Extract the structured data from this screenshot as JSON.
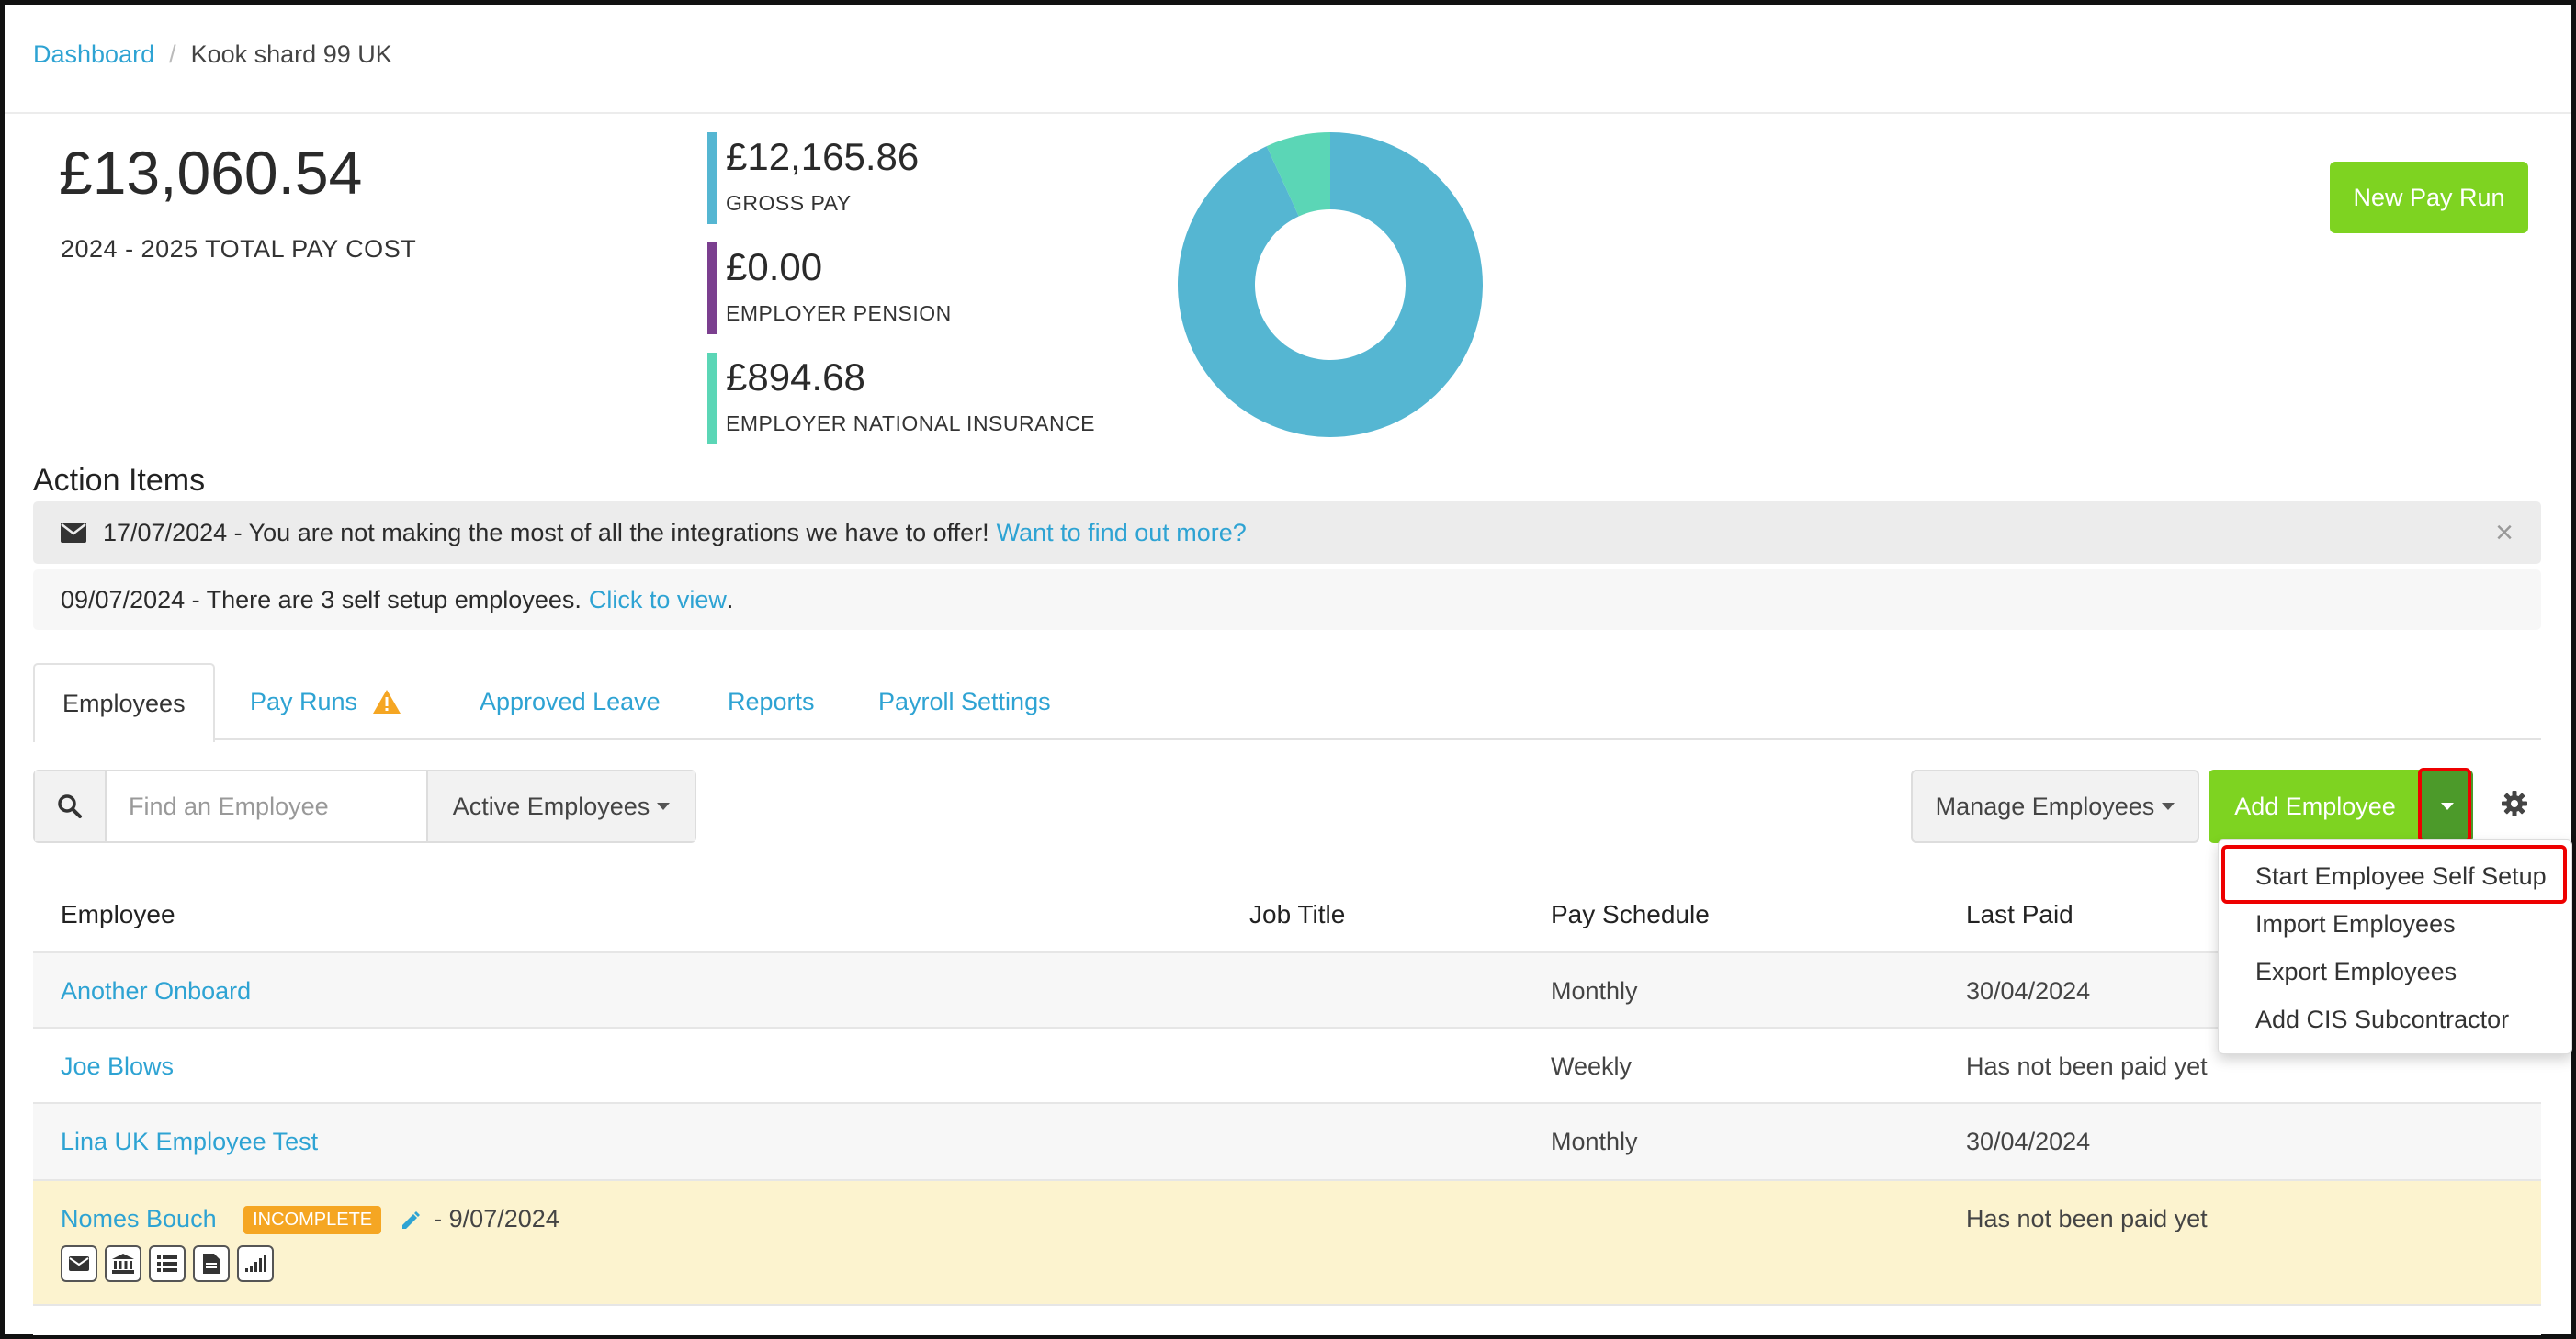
{
  "breadcrumb": {
    "home": "Dashboard",
    "separator": "/",
    "current": "Kook shard 99 UK"
  },
  "summary": {
    "total_amount": "£13,060.54",
    "total_label": "2024 - 2025 TOTAL PAY COST",
    "stats": [
      {
        "amount": "£12,165.86",
        "label": "GROSS PAY",
        "color": "#55b6d2"
      },
      {
        "amount": "£0.00",
        "label": "EMPLOYER PENSION",
        "color": "#7b3f8f"
      },
      {
        "amount": "£894.68",
        "label": "EMPLOYER NATIONAL INSURANCE",
        "color": "#5bd6b6"
      }
    ],
    "new_pay_run_label": "New Pay Run"
  },
  "chart_data": {
    "type": "pie",
    "variant": "donut",
    "series": [
      {
        "name": "GROSS PAY",
        "value": 12165.86,
        "color": "#55b6d2"
      },
      {
        "name": "EMPLOYER PENSION",
        "value": 0.0,
        "color": "#7b3f8f"
      },
      {
        "name": "EMPLOYER NATIONAL INSURANCE",
        "value": 894.68,
        "color": "#5bd6b6"
      }
    ]
  },
  "action_items": {
    "title": "Action Items",
    "alerts": [
      {
        "text": "17/07/2024 - You are not making the most of all the integrations we have to offer!",
        "link": "Want to find out more?",
        "icon": "envelope-icon",
        "close": "×"
      },
      {
        "text": "09/07/2024 - There are 3 self setup employees.",
        "link": "Click to view",
        "suffix": "."
      }
    ]
  },
  "tabs": [
    {
      "label": "Employees",
      "active": true
    },
    {
      "label": "Pay Runs",
      "warning_icon": "warning-icon"
    },
    {
      "label": "Approved Leave"
    },
    {
      "label": "Reports"
    },
    {
      "label": "Payroll Settings"
    }
  ],
  "toolbar": {
    "search_placeholder": "Find an Employee",
    "filter_label": "Active Employees",
    "manage_label": "Manage Employees",
    "add_label": "Add Employee"
  },
  "dropdown": {
    "items": [
      "Start Employee Self Setup",
      "Import Employees",
      "Export Employees",
      "Add CIS Subcontractor"
    ]
  },
  "table": {
    "headers": [
      "Employee",
      "Job Title",
      "Pay Schedule",
      "Last Paid"
    ],
    "rows": [
      {
        "name": "Another Onboard",
        "job": "",
        "schedule": "Monthly",
        "last_paid": "30/04/2024"
      },
      {
        "name": "Joe Blows",
        "job": "",
        "schedule": "Weekly",
        "last_paid": "Has not been paid yet"
      },
      {
        "name": "Lina UK Employee Test",
        "job": "",
        "schedule": "Monthly",
        "last_paid": "30/04/2024"
      },
      {
        "name": "Nomes Bouch",
        "badge": "INCOMPLETE",
        "date": "- 9/07/2024",
        "job": "",
        "schedule": "",
        "last_paid": "Has not been paid yet"
      }
    ]
  }
}
